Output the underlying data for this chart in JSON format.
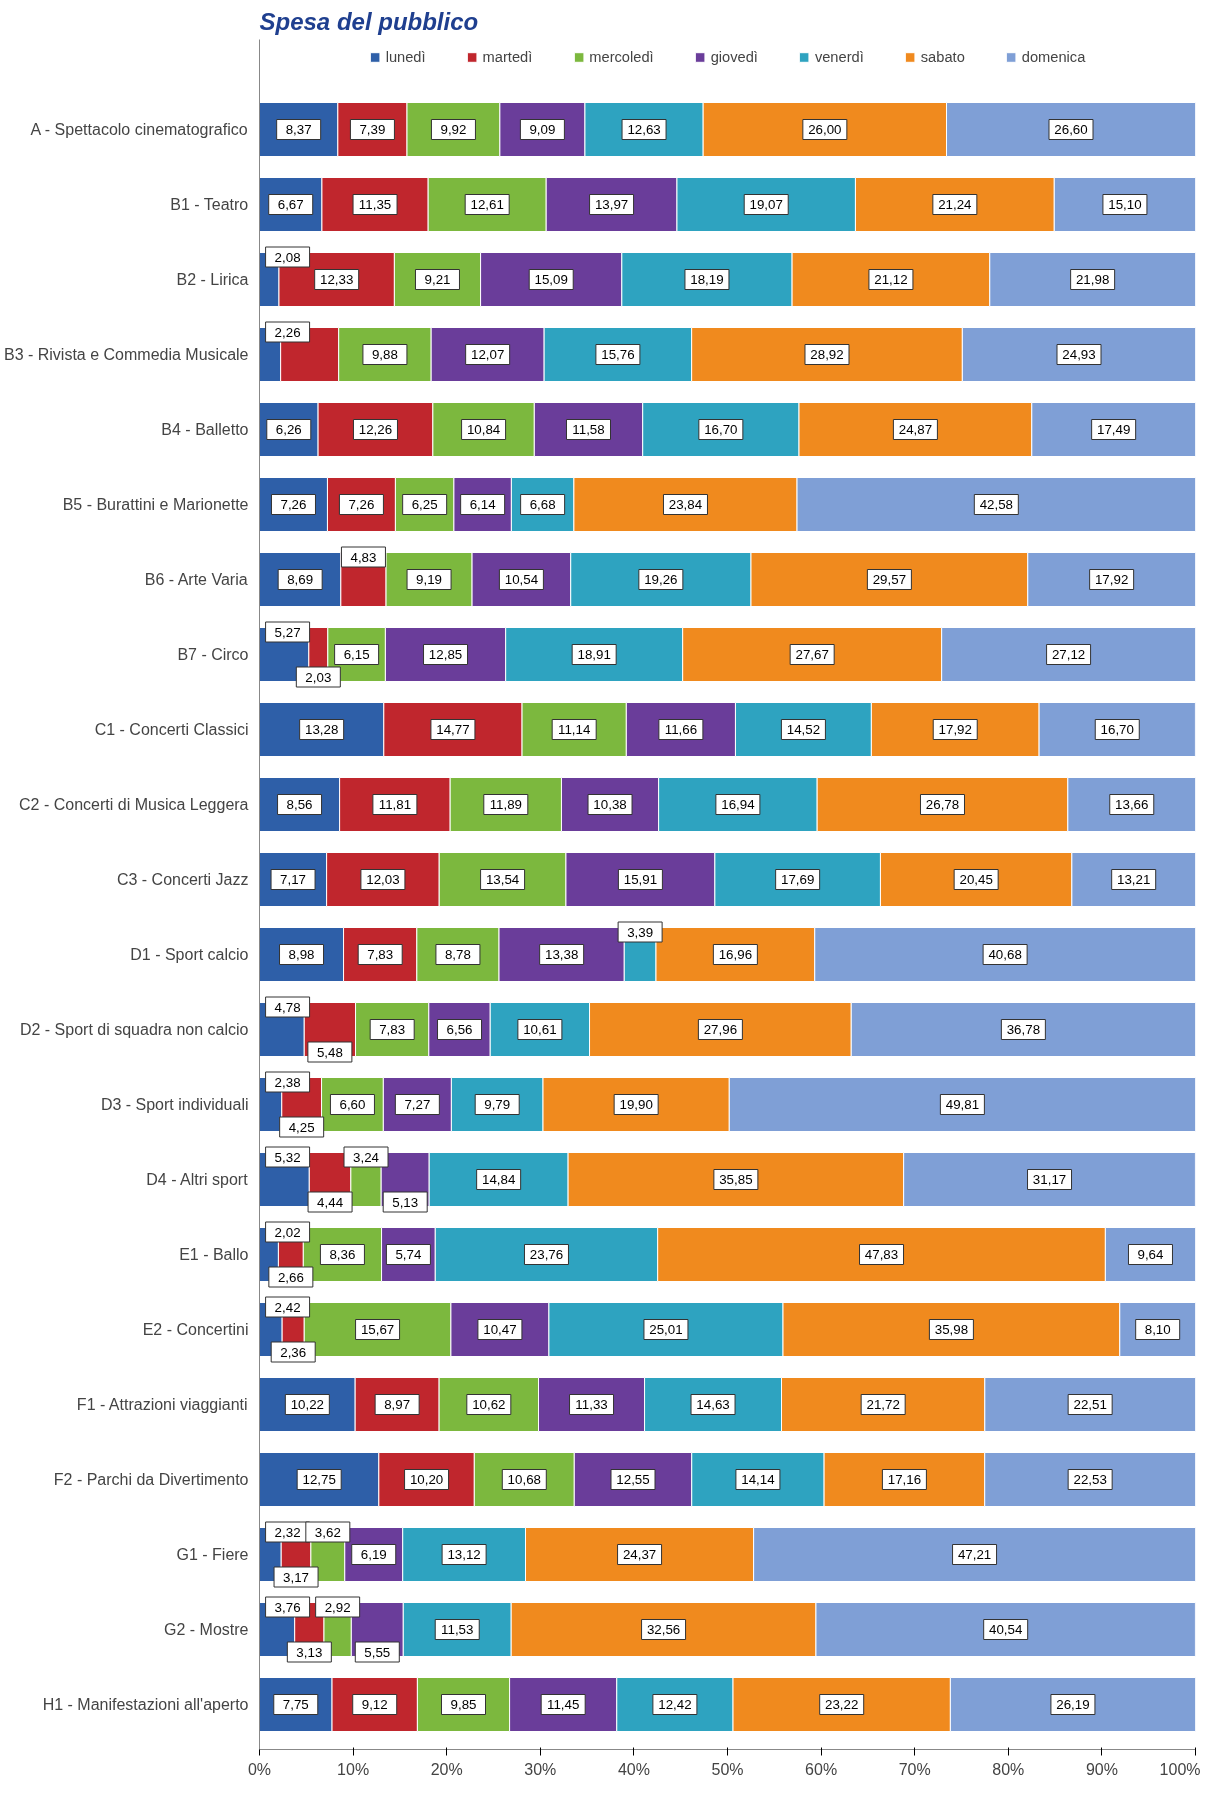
{
  "chart_data": {
    "type": "bar",
    "orientation": "horizontal",
    "stacked": true,
    "title": "Spesa del pubblico",
    "legend": "top",
    "categories": [
      "A - Spettacolo cinematografico",
      "B1 - Teatro",
      "B2 - Lirica",
      "B3 - Rivista e Commedia Musicale",
      "B4 - Balletto",
      "B5 - Burattini e Marionette",
      "B6 - Arte Varia",
      "B7 - Circo",
      "C1 - Concerti Classici",
      "C2 - Concerti di Musica Leggera",
      "C3 - Concerti Jazz",
      "D1 - Sport calcio",
      "D2 - Sport di squadra non calcio",
      "D3 - Sport individuali",
      "D4 - Altri sport",
      "E1 - Ballo",
      "E2 - Concertini",
      "F1 - Attrazioni viaggianti",
      "F2 - Parchi da Divertimento",
      "G1 - Fiere",
      "G2 - Mostre",
      "H1 - Manifestazioni all'aperto"
    ],
    "xlim": [
      0,
      100
    ],
    "xticks": [
      {
        "value": 0,
        "label": "0%"
      },
      {
        "value": 10,
        "label": "10%"
      },
      {
        "value": 20,
        "label": "20%"
      },
      {
        "value": 30,
        "label": "30%"
      },
      {
        "value": 40,
        "label": "40%"
      },
      {
        "value": 50,
        "label": "50%"
      },
      {
        "value": 60,
        "label": "60%"
      },
      {
        "value": 70,
        "label": "70%"
      },
      {
        "value": 80,
        "label": "80%"
      },
      {
        "value": 90,
        "label": "90%"
      },
      {
        "value": 100,
        "label": "100%"
      }
    ],
    "series": [
      {
        "name": "lunedì",
        "color": "#2e5fa8",
        "values": [
          8.37,
          6.67,
          2.08,
          2.26,
          6.26,
          7.26,
          8.69,
          5.27,
          13.28,
          8.56,
          7.17,
          8.98,
          4.78,
          2.38,
          5.32,
          2.02,
          2.42,
          10.22,
          12.75,
          2.32,
          3.76,
          7.75
        ],
        "value_labels": [
          "8,37",
          "6,67",
          "2,08",
          "2,26",
          "6,26",
          "7,26",
          "8,69",
          "5,27",
          "13,28",
          "8,56",
          "7,17",
          "8,98",
          "4,78",
          "2,38",
          "5,32",
          "2,02",
          "2,42",
          "10,22",
          "12,75",
          "2,32",
          "3,76",
          "7,75"
        ]
      },
      {
        "name": "martedì",
        "color": "#c0262d",
        "values": [
          7.39,
          11.35,
          12.33,
          6.2,
          12.26,
          7.26,
          4.83,
          2.03,
          14.77,
          11.81,
          12.03,
          7.83,
          5.48,
          4.25,
          4.44,
          2.66,
          2.36,
          8.97,
          10.2,
          3.17,
          3.13,
          9.12
        ],
        "value_labels": [
          "7,39",
          "11,35",
          "12,33",
          null,
          "12,26",
          "7,26",
          "4,83",
          "2,03",
          "14,77",
          "11,81",
          "12,03",
          "7,83",
          "5,48",
          "4,25",
          "4,44",
          "2,66",
          "2,36",
          "8,97",
          "10,20",
          "3,17",
          "3,13",
          "9,12"
        ]
      },
      {
        "name": "mercoledì",
        "color": "#7cb83e",
        "values": [
          9.92,
          12.61,
          9.21,
          9.88,
          10.84,
          6.25,
          9.19,
          6.15,
          11.14,
          11.89,
          13.54,
          8.78,
          7.83,
          6.6,
          3.24,
          8.36,
          15.67,
          10.62,
          10.68,
          3.62,
          2.92,
          9.85
        ],
        "value_labels": [
          "9,92",
          "12,61",
          "9,21",
          "9,88",
          "10,84",
          "6,25",
          "9,19",
          "6,15",
          "11,14",
          "11,89",
          "13,54",
          "8,78",
          "7,83",
          "6,60",
          "3,24",
          "8,36",
          "15,67",
          "10,62",
          "10,68",
          "3,62",
          "2,92",
          "9,85"
        ]
      },
      {
        "name": "giovedì",
        "color": "#6a3d9a",
        "values": [
          9.09,
          13.97,
          15.09,
          12.07,
          11.58,
          6.14,
          10.54,
          12.85,
          11.66,
          10.38,
          15.91,
          13.38,
          6.56,
          7.27,
          5.13,
          5.74,
          10.47,
          11.33,
          12.55,
          6.19,
          5.55,
          11.45
        ],
        "value_labels": [
          "9,09",
          "13,97",
          "15,09",
          "12,07",
          "11,58",
          "6,14",
          "10,54",
          "12,85",
          "11,66",
          "10,38",
          "15,91",
          "13,38",
          "6,56",
          "7,27",
          "5,13",
          "5,74",
          "10,47",
          "11,33",
          "12,55",
          "6,19",
          "5,55",
          "11,45"
        ]
      },
      {
        "name": "venerdì",
        "color": "#2ea3c0",
        "values": [
          12.63,
          19.07,
          18.19,
          15.76,
          16.7,
          6.68,
          19.26,
          18.91,
          14.52,
          16.94,
          17.69,
          3.39,
          10.61,
          9.79,
          14.84,
          23.76,
          25.01,
          14.63,
          14.14,
          13.12,
          11.53,
          12.42
        ],
        "value_labels": [
          "12,63",
          "19,07",
          "18,19",
          "15,76",
          "16,70",
          "6,68",
          "19,26",
          "18,91",
          "14,52",
          "16,94",
          "17,69",
          "3,39",
          "10,61",
          "9,79",
          "14,84",
          "23,76",
          "25,01",
          "14,63",
          "14,14",
          "13,12",
          "11,53",
          "12,42"
        ]
      },
      {
        "name": "sabato",
        "color": "#f08a1e",
        "values": [
          26.0,
          21.24,
          21.12,
          28.92,
          24.87,
          23.84,
          29.57,
          27.67,
          17.92,
          26.78,
          20.45,
          16.96,
          27.96,
          19.9,
          35.85,
          47.83,
          35.98,
          21.72,
          17.16,
          24.37,
          32.56,
          23.22
        ],
        "value_labels": [
          "26,00",
          "21,24",
          "21,12",
          "28,92",
          "24,87",
          "23,84",
          "29,57",
          "27,67",
          "17,92",
          "26,78",
          "20,45",
          "16,96",
          "27,96",
          "19,90",
          "35,85",
          "47,83",
          "35,98",
          "21,72",
          "17,16",
          "24,37",
          "32,56",
          "23,22"
        ]
      },
      {
        "name": "domenica",
        "color": "#7f9fd6",
        "values": [
          26.6,
          15.1,
          21.98,
          24.93,
          17.49,
          42.58,
          17.92,
          27.12,
          16.7,
          13.66,
          13.21,
          40.68,
          36.78,
          49.81,
          31.17,
          9.64,
          8.1,
          22.51,
          22.53,
          47.21,
          40.54,
          26.19
        ],
        "value_labels": [
          "26,60",
          "15,10",
          "21,98",
          "24,93",
          "17,49",
          "42,58",
          "17,92",
          "27,12",
          "16,70",
          "13,66",
          "13,21",
          "40,68",
          "36,78",
          "49,81",
          "31,17",
          "9,64",
          "8,10",
          "22,51",
          "22,53",
          "47,21",
          "40,54",
          "26,19"
        ]
      }
    ]
  }
}
